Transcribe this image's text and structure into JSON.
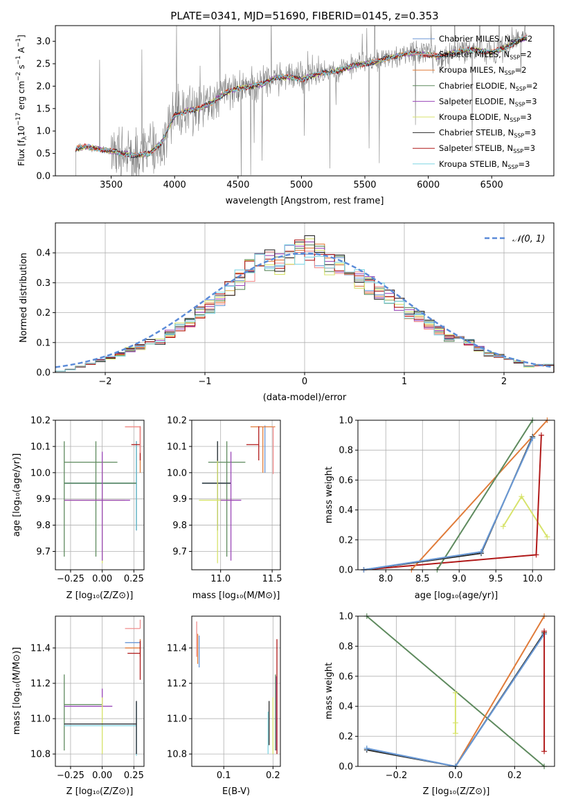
{
  "figure_title": "PLATE=0341, MJD=51690, FIBERID=0145, z=0.353",
  "colors": {
    "chabrier_miles": "#6a96d4",
    "salpeter_miles": "#f08c8c",
    "kroupa_miles": "#e07b39",
    "chabrier_elodie": "#5e8a5e",
    "salpeter_elodie": "#9a47b8",
    "kroupa_elodie": "#d7e36b",
    "chabrier_stelib": "#2b2b2b",
    "salpeter_stelib": "#b01818",
    "kroupa_stelib": "#7fd5e3",
    "observed": "#808080",
    "gaussian": "#5b8bd8",
    "grid": "#b0b0b0"
  },
  "chart_data": [
    {
      "id": "spectrum",
      "type": "line",
      "title": "PLATE=0341, MJD=51690, FIBERID=0145, z=0.353",
      "xlabel": "wavelength [Angstrom, rest frame]",
      "ylabel": "Flux [f_λ 10⁻¹⁷ erg cm⁻² s⁻¹ A⁻¹]",
      "xlim": [
        3060,
        6990
      ],
      "ylim": [
        0,
        3.35
      ],
      "xticks": [
        "3500",
        "4000",
        "4500",
        "5000",
        "5500",
        "6000",
        "6500"
      ],
      "yticks": [
        "0.0",
        "0.5",
        "1.0",
        "1.5",
        "2.0",
        "2.5",
        "3.0"
      ],
      "grid": false,
      "legend_position": "top-right",
      "legend": [
        "Chabrier MILES, N_SSP=2",
        "Salpeter MILES, N_SSP=2",
        "Kroupa MILES, N_SSP=2",
        "Chabrier ELODIE, N_SSP=2",
        "Salpeter ELODIE, N_SSP=3",
        "Kroupa ELODIE, N_SSP=3",
        "Chabrier STELIB, N_SSP=3",
        "Salpeter STELIB, N_SSP=3",
        "Kroupa STELIB, N_SSP=3"
      ],
      "continuum_x": [
        3220,
        3300,
        3400,
        3500,
        3600,
        3700,
        3800,
        3900,
        4000,
        4100,
        4200,
        4300,
        4400,
        4500,
        4600,
        4700,
        4800,
        4900,
        5000,
        5100,
        5200,
        5300,
        5400,
        5500,
        5600,
        5700,
        5800,
        5900,
        6000,
        6100,
        6200,
        6300,
        6400,
        6500,
        6600,
        6700,
        6780
      ],
      "continuum_y": [
        0.6,
        0.65,
        0.6,
        0.55,
        0.5,
        0.45,
        0.5,
        0.75,
        1.35,
        1.45,
        1.5,
        1.65,
        1.85,
        1.95,
        2.0,
        2.05,
        2.2,
        2.2,
        2.15,
        2.25,
        2.3,
        2.35,
        2.45,
        2.5,
        2.55,
        2.65,
        2.7,
        2.75,
        2.7,
        2.65,
        2.75,
        2.8,
        2.8,
        2.75,
        2.85,
        3.0,
        3.1
      ]
    },
    {
      "id": "residuals",
      "type": "histogram",
      "xlabel": "(data-model)/error",
      "ylabel": "Normed distribution",
      "xlim": [
        -2.5,
        2.5
      ],
      "ylim": [
        0,
        0.5
      ],
      "xticks": [
        "−2",
        "−1",
        "0",
        "1",
        "2"
      ],
      "yticks": [
        "0.0",
        "0.1",
        "0.2",
        "0.3",
        "0.4"
      ],
      "grid": true,
      "legend_position": "top-right",
      "legend": [
        "𝒩(0, 1)"
      ],
      "bin_edges": [
        -2.5,
        -2.4,
        -2.3,
        -2.2,
        -2.1,
        -2.0,
        -1.9,
        -1.8,
        -1.7,
        -1.6,
        -1.5,
        -1.4,
        -1.3,
        -1.2,
        -1.1,
        -1.0,
        -0.9,
        -0.8,
        -0.7,
        -0.6,
        -0.5,
        -0.4,
        -0.3,
        -0.2,
        -0.1,
        0.0,
        0.1,
        0.2,
        0.3,
        0.4,
        0.5,
        0.6,
        0.7,
        0.8,
        0.9,
        1.0,
        1.1,
        1.2,
        1.3,
        1.4,
        1.5,
        1.6,
        1.7,
        1.8,
        1.9,
        2.0,
        2.1,
        2.2,
        2.3,
        2.4,
        2.5
      ],
      "base_counts": [
        0.005,
        0.01,
        0.02,
        0.03,
        0.04,
        0.05,
        0.06,
        0.075,
        0.085,
        0.1,
        0.105,
        0.13,
        0.15,
        0.17,
        0.2,
        0.22,
        0.25,
        0.28,
        0.31,
        0.34,
        0.36,
        0.37,
        0.36,
        0.39,
        0.4,
        0.42,
        0.39,
        0.36,
        0.37,
        0.33,
        0.31,
        0.29,
        0.27,
        0.25,
        0.23,
        0.2,
        0.19,
        0.16,
        0.14,
        0.115,
        0.11,
        0.1,
        0.08,
        0.06,
        0.055,
        0.045,
        0.035,
        0.02,
        0.025,
        0.025
      ],
      "gaussian": {
        "mean": 0,
        "sigma": 1
      }
    },
    {
      "id": "age_vs_Z",
      "type": "scatter",
      "xlabel": "Z [log₁₀(Z/Z⊙)]",
      "ylabel": "age  [log₁₀(age/yr)]",
      "xlim": [
        -0.37,
        0.33
      ],
      "ylim": [
        9.63,
        10.2
      ],
      "xticks": [
        "−0.25",
        "0.00",
        "0.25"
      ],
      "yticks": [
        "9.7",
        "9.8",
        "9.9",
        "10.0",
        "10.1",
        "10.2"
      ],
      "grid": true,
      "points": [
        {
          "series": "chabrier_elodie",
          "x": -0.05,
          "xerr": [
            0.25,
            0.17
          ],
          "y": 10.04,
          "yerr": [
            0.36,
            0.08
          ]
        },
        {
          "series": "chabrier_miles",
          "x": 0.27,
          "xerr": [
            0.57,
            0.0
          ],
          "y": 9.96,
          "yerr": [
            0.18,
            0.16
          ]
        },
        {
          "series": "chabrier_stelib",
          "x": 0.27,
          "xerr": [
            0.57,
            0.0
          ],
          "y": 9.96,
          "yerr": [
            0.18,
            0.16
          ]
        },
        {
          "series": "kroupa_stelib",
          "x": 0.27,
          "xerr": [
            0.57,
            0.0
          ],
          "y": 9.96,
          "yerr": [
            0.18,
            0.16
          ]
        },
        {
          "series": "chabrier_elodie",
          "x": -0.3,
          "xerr": [
            0.0,
            0.57
          ],
          "y": 9.96,
          "yerr": [
            0.28,
            0.16
          ]
        },
        {
          "series": "kroupa_elodie",
          "x": 0.0,
          "xerr": [
            0.3,
            0.18
          ],
          "y": 9.895,
          "yerr": [
            0.24,
            0.15
          ]
        },
        {
          "series": "salpeter_elodie",
          "x": 0.0,
          "xerr": [
            0.3,
            0.22
          ],
          "y": 9.895,
          "yerr": [
            0.23,
            0.185
          ]
        },
        {
          "series": "kroupa_miles",
          "x": 0.3,
          "xerr": [
            0.12,
            0.0
          ],
          "y": 10.175,
          "yerr": [
            0.175,
            0.0
          ]
        },
        {
          "series": "salpeter_stelib",
          "x": 0.3,
          "xerr": [
            0.07,
            0.0
          ],
          "y": 10.107,
          "yerr": [
            0.06,
            0.07
          ]
        },
        {
          "series": "salpeter_miles",
          "x": 0.3,
          "xerr": [
            0.12,
            0.0
          ],
          "y": 10.175,
          "yerr": [
            0.1,
            0.0
          ]
        }
      ]
    },
    {
      "id": "age_vs_mass",
      "type": "scatter",
      "xlabel": "mass [log₁₀(M/M⊙)]",
      "ylabel": "",
      "xlim": [
        10.72,
        11.58
      ],
      "ylim": [
        9.63,
        10.2
      ],
      "xticks": [
        "11.0",
        "11.5"
      ],
      "yticks": [
        "9.7",
        "9.8",
        "9.9",
        "10.0",
        "10.1",
        "10.2"
      ],
      "grid": true,
      "points": [
        {
          "series": "chabrier_elodie",
          "x": 11.06,
          "xerr": [
            0.18,
            0.18
          ],
          "y": 10.04,
          "yerr": [
            0.36,
            0.08
          ]
        },
        {
          "series": "chabrier_miles",
          "x": 10.97,
          "xerr": [
            0.15,
            0.13
          ],
          "y": 9.96,
          "yerr": [
            0.18,
            0.16
          ]
        },
        {
          "series": "kroupa_stelib",
          "x": 10.97,
          "xerr": [
            0.15,
            0.13
          ],
          "y": 9.96,
          "yerr": [
            0.18,
            0.16
          ]
        },
        {
          "series": "chabrier_stelib",
          "x": 10.97,
          "xerr": [
            0.15,
            0.13
          ],
          "y": 9.96,
          "yerr": [
            0.18,
            0.16
          ]
        },
        {
          "series": "kroupa_elodie",
          "x": 10.97,
          "xerr": [
            0.18,
            0.16
          ],
          "y": 9.895,
          "yerr": [
            0.24,
            0.15
          ]
        },
        {
          "series": "salpeter_elodie",
          "x": 11.1,
          "xerr": [
            0.1,
            0.1
          ],
          "y": 9.895,
          "yerr": [
            0.23,
            0.185
          ]
        },
        {
          "series": "chabrier_miles",
          "x": 11.43,
          "xerr": [
            0.0,
            0.0
          ],
          "y": 10.1,
          "yerr": [
            0.1,
            0.08
          ]
        },
        {
          "series": "kroupa_miles",
          "x": 11.41,
          "xerr": [
            0.12,
            0.12
          ],
          "y": 10.175,
          "yerr": [
            0.175,
            0.0
          ]
        },
        {
          "series": "salpeter_stelib",
          "x": 11.37,
          "xerr": [
            0.12,
            0.0
          ],
          "y": 10.107,
          "yerr": [
            0.06,
            0.07
          ]
        },
        {
          "series": "salpeter_miles",
          "x": 11.51,
          "xerr": [
            0.0,
            0.0
          ],
          "y": 10.175,
          "yerr": [
            0.18,
            0.0
          ]
        }
      ]
    },
    {
      "id": "mass_weight_vs_age",
      "type": "line",
      "xlabel": "age  [log₁₀(age/yr)]",
      "ylabel": "mass weight",
      "xlim": [
        7.62,
        10.3
      ],
      "ylim": [
        0,
        1
      ],
      "xticks": [
        "8.0",
        "8.5",
        "9.0",
        "9.5",
        "10.0"
      ],
      "yticks": [
        "0.0",
        "0.2",
        "0.4",
        "0.6",
        "0.8",
        "1.0"
      ],
      "grid": true,
      "series": [
        {
          "name": "Kroupa ELODIE",
          "key": "kroupa_elodie",
          "x": [
            9.6,
            9.85,
            10.2
          ],
          "y": [
            0.29,
            0.49,
            0.22
          ]
        },
        {
          "name": "Salpeter STELIB",
          "key": "salpeter_stelib",
          "x": [
            7.7,
            10.05,
            10.12
          ],
          "y": [
            0.0,
            0.1,
            0.9
          ]
        },
        {
          "name": "Kroupa MILES",
          "key": "kroupa_miles",
          "x": [
            8.35,
            10.2
          ],
          "y": [
            0.0,
            1.0
          ]
        },
        {
          "name": "Chabrier ELODIE",
          "key": "chabrier_elodie",
          "x": [
            8.7,
            10.0
          ],
          "y": [
            0.0,
            1.0
          ]
        },
        {
          "name": "Chabrier STELIB",
          "key": "chabrier_stelib",
          "x": [
            7.7,
            9.3,
            10.0
          ],
          "y": [
            0.0,
            0.11,
            0.89
          ]
        },
        {
          "name": "Kroupa STELIB",
          "key": "kroupa_stelib",
          "x": [
            7.7,
            9.3,
            10.0
          ],
          "y": [
            0.0,
            0.12,
            0.88
          ]
        },
        {
          "name": "Chabrier MILES",
          "key": "chabrier_miles",
          "x": [
            7.7,
            9.3,
            10.0
          ],
          "y": [
            0.0,
            0.12,
            0.88
          ]
        }
      ]
    },
    {
      "id": "mass_vs_Z",
      "type": "scatter",
      "xlabel": "Z [log₁₀(Z/Z⊙)]",
      "ylabel": "mass [log₁₀(M/M⊙)]",
      "xlim": [
        -0.37,
        0.33
      ],
      "ylim": [
        10.73,
        11.58
      ],
      "xticks": [
        "−0.25",
        "0.00",
        "0.25"
      ],
      "yticks": [
        "10.8",
        "11.0",
        "11.2",
        "11.4"
      ],
      "grid": true,
      "points": [
        {
          "series": "chabrier_elodie",
          "x": -0.3,
          "xerr": [
            0.0,
            0.3
          ],
          "y": 11.08,
          "yerr": [
            0.26,
            0.17
          ]
        },
        {
          "series": "salpeter_elodie",
          "x": 0.0,
          "xerr": [
            0.3,
            0.08
          ],
          "y": 11.07,
          "yerr": [
            0.0,
            0.1
          ]
        },
        {
          "series": "kroupa_elodie",
          "x": 0.0,
          "xerr": [
            0.0,
            0.0
          ],
          "y": 10.97,
          "yerr": [
            0.17,
            0.15
          ]
        },
        {
          "series": "chabrier_miles",
          "x": 0.27,
          "xerr": [
            0.57,
            0.0
          ],
          "y": 10.97,
          "yerr": [
            0.17,
            0.13
          ]
        },
        {
          "series": "kroupa_stelib",
          "x": 0.27,
          "xerr": [
            0.57,
            0.0
          ],
          "y": 10.96,
          "yerr": [
            0.17,
            0.13
          ]
        },
        {
          "series": "chabrier_stelib",
          "x": 0.27,
          "xerr": [
            0.57,
            0.0
          ],
          "y": 10.97,
          "yerr": [
            0.17,
            0.13
          ]
        },
        {
          "series": "salpeter_miles",
          "x": 0.3,
          "xerr": [
            0.12,
            0.0
          ],
          "y": 11.51,
          "yerr": [
            0.0,
            0.05
          ]
        },
        {
          "series": "chabrier_miles",
          "x": 0.3,
          "xerr": [
            0.12,
            0.0
          ],
          "y": 11.43,
          "yerr": [
            0.0,
            0.0
          ]
        },
        {
          "series": "kroupa_miles",
          "x": 0.3,
          "xerr": [
            0.12,
            0.0
          ],
          "y": 11.4,
          "yerr": [
            0.05,
            0.05
          ]
        },
        {
          "series": "salpeter_stelib",
          "x": 0.3,
          "xerr": [
            0.1,
            0.0
          ],
          "y": 11.37,
          "yerr": [
            0.15,
            0.07
          ]
        }
      ]
    },
    {
      "id": "mass_vs_ebv",
      "type": "scatter",
      "xlabel": "E(B-V)",
      "ylabel": "",
      "xlim": [
        0.035,
        0.215
      ],
      "ylim": [
        10.73,
        11.58
      ],
      "xticks": [
        "0.1",
        "0.2"
      ],
      "yticks": [
        "10.8",
        "11.0",
        "11.2",
        "11.4"
      ],
      "grid": true,
      "points": [
        {
          "series": "salpeter_miles",
          "x": 0.045,
          "xerr": [
            0.0,
            0.0
          ],
          "y": 11.45,
          "yerr": [
            0.1,
            0.1
          ]
        },
        {
          "series": "kroupa_miles",
          "x": 0.047,
          "xerr": [
            0.0,
            0.0
          ],
          "y": 11.38,
          "yerr": [
            0.07,
            0.1
          ]
        },
        {
          "series": "chabrier_miles",
          "x": 0.05,
          "xerr": [
            0.0,
            0.0
          ],
          "y": 11.37,
          "yerr": [
            0.08,
            0.1
          ]
        },
        {
          "series": "kroupa_stelib",
          "x": 0.19,
          "xerr": [
            0.0,
            0.0
          ],
          "y": 10.94,
          "yerr": [
            0.14,
            0.1
          ]
        },
        {
          "series": "chabrier_stelib",
          "x": 0.192,
          "xerr": [
            0.0,
            0.0
          ],
          "y": 11.0,
          "yerr": [
            0.15,
            0.1
          ]
        },
        {
          "series": "kroupa_elodie",
          "x": 0.2,
          "xerr": [
            0.0,
            0.0
          ],
          "y": 10.97,
          "yerr": [
            0.17,
            0.15
          ]
        },
        {
          "series": "chabrier_elodie",
          "x": 0.205,
          "xerr": [
            0.0,
            0.0
          ],
          "y": 11.08,
          "yerr": [
            0.26,
            0.17
          ]
        },
        {
          "series": "salpeter_elodie",
          "x": 0.207,
          "xerr": [
            0.0,
            0.0
          ],
          "y": 11.07,
          "yerr": [
            0.25,
            0.17
          ]
        },
        {
          "series": "salpeter_stelib",
          "x": 0.208,
          "xerr": [
            0.0,
            0.0
          ],
          "y": 11.2,
          "yerr": [
            0.4,
            0.25
          ]
        }
      ]
    },
    {
      "id": "mass_weight_vs_Z",
      "type": "line",
      "xlabel": "Z [log₁₀(Z/Z⊙)]",
      "ylabel": "mass weight",
      "xlim": [
        -0.33,
        0.335
      ],
      "ylim": [
        0,
        1
      ],
      "xticks": [
        "−0.2",
        "0.0",
        "0.2"
      ],
      "yticks": [
        "0.0",
        "0.2",
        "0.4",
        "0.6",
        "0.8",
        "1.0"
      ],
      "grid": true,
      "series": [
        {
          "name": "Chabrier ELODIE",
          "key": "chabrier_elodie",
          "x": [
            -0.3,
            0.3
          ],
          "y": [
            1.0,
            0.0
          ]
        },
        {
          "name": "Kroupa MILES",
          "key": "kroupa_miles",
          "x": [
            0.0,
            0.3
          ],
          "y": [
            0.0,
            1.0
          ]
        },
        {
          "name": "Chabrier STELIB",
          "key": "chabrier_stelib",
          "x": [
            -0.3,
            0.0,
            0.3
          ],
          "y": [
            0.11,
            0.0,
            0.89
          ]
        },
        {
          "name": "Kroupa STELIB",
          "key": "kroupa_stelib",
          "x": [
            -0.3,
            0.0,
            0.3
          ],
          "y": [
            0.12,
            0.0,
            0.88
          ]
        },
        {
          "name": "Chabrier MILES",
          "key": "chabrier_miles",
          "x": [
            -0.3,
            0.0,
            0.3
          ],
          "y": [
            0.12,
            0.0,
            0.88
          ]
        },
        {
          "name": "Kroupa ELODIE",
          "key": "kroupa_elodie",
          "x": [
            0.0,
            0.0,
            0.0
          ],
          "y": [
            0.22,
            0.49,
            0.29
          ]
        },
        {
          "name": "Salpeter STELIB",
          "key": "salpeter_stelib",
          "x": [
            0.3,
            0.3
          ],
          "y": [
            0.1,
            0.9
          ]
        }
      ]
    }
  ]
}
